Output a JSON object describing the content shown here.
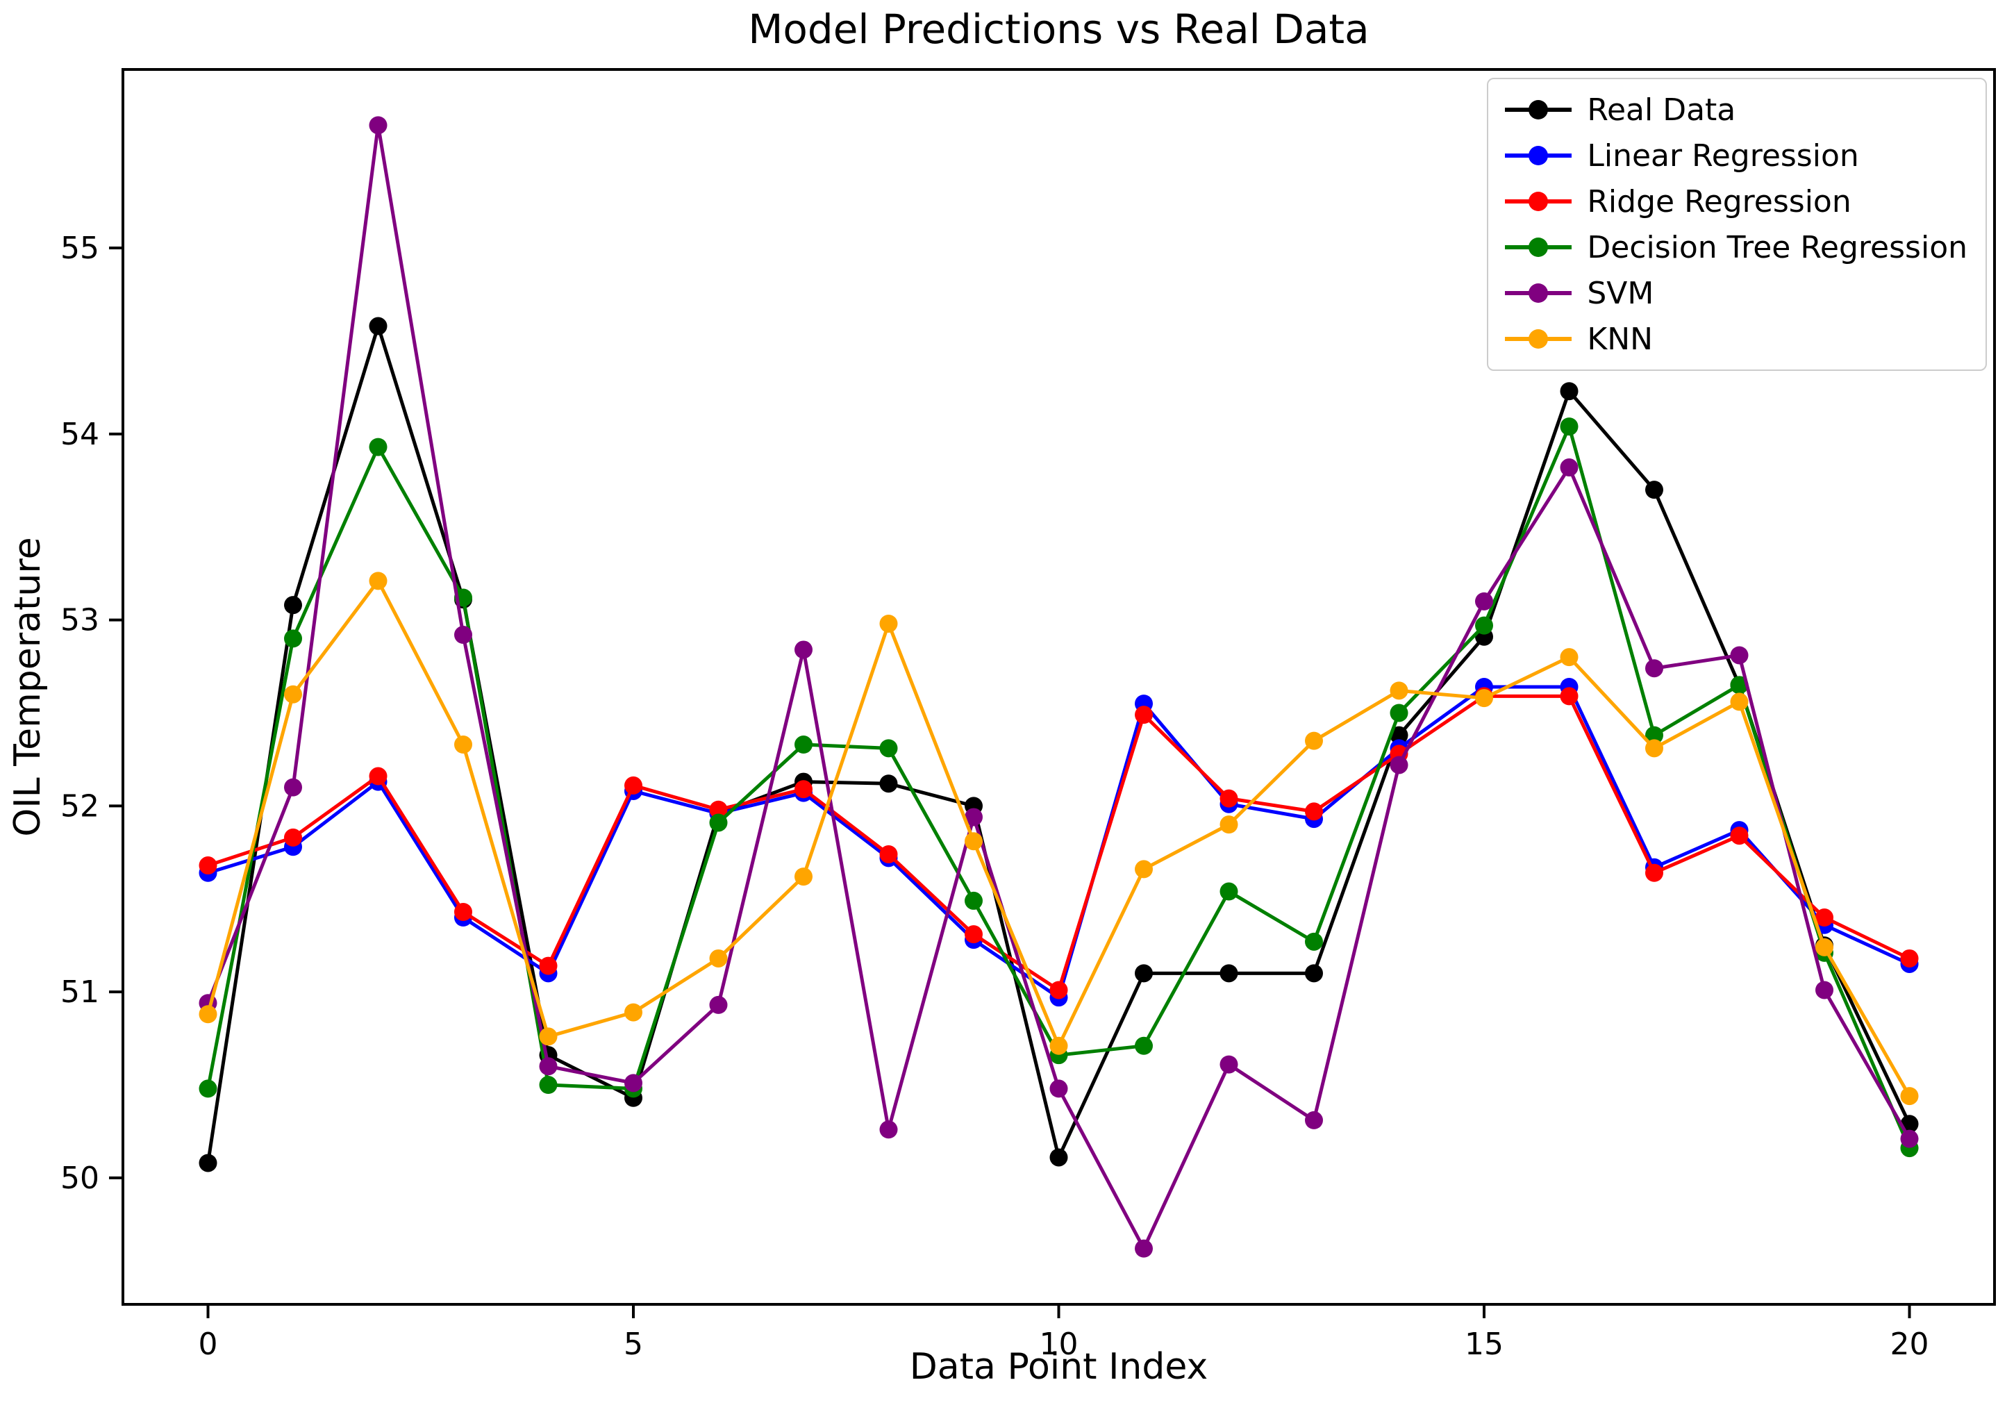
{
  "chart_data": {
    "type": "line",
    "title": "Model Predictions vs Real Data",
    "xlabel": "Data Point Index",
    "ylabel": "OIL Temperature",
    "x": [
      0,
      1,
      2,
      3,
      4,
      5,
      6,
      7,
      8,
      9,
      10,
      11,
      12,
      13,
      14,
      15,
      16,
      17,
      18,
      19,
      20
    ],
    "xlim": [
      -1,
      21
    ],
    "ylim": [
      49.32,
      55.96
    ],
    "x_ticks": [
      0,
      5,
      10,
      15,
      20
    ],
    "y_ticks": [
      50,
      51,
      52,
      53,
      54,
      55
    ],
    "grid": false,
    "legend_position": "upper right",
    "marker": "o",
    "series": [
      {
        "name": "Real Data",
        "color": "#000000",
        "values": [
          50.08,
          53.08,
          54.58,
          53.11,
          50.66,
          50.43,
          51.96,
          52.13,
          52.12,
          52.0,
          50.11,
          51.1,
          51.1,
          51.1,
          52.38,
          52.91,
          54.23,
          53.7,
          52.65,
          51.25,
          50.29
        ]
      },
      {
        "name": "Linear Regression",
        "color": "#0000ff",
        "values": [
          51.64,
          51.78,
          52.13,
          51.4,
          51.1,
          52.08,
          51.96,
          52.07,
          51.72,
          51.28,
          50.97,
          52.55,
          52.01,
          51.93,
          52.31,
          52.64,
          52.64,
          51.67,
          51.87,
          51.36,
          51.15
        ]
      },
      {
        "name": "Ridge Regression",
        "color": "#ff0000",
        "values": [
          51.68,
          51.83,
          52.16,
          51.43,
          51.14,
          52.11,
          51.98,
          52.09,
          51.74,
          51.31,
          51.01,
          52.49,
          52.04,
          51.97,
          52.28,
          52.59,
          52.59,
          51.64,
          51.84,
          51.4,
          51.18
        ]
      },
      {
        "name": "Decision Tree Regression",
        "color": "#008000",
        "values": [
          50.48,
          52.9,
          53.93,
          53.12,
          50.5,
          50.48,
          51.91,
          52.33,
          52.31,
          51.49,
          50.66,
          50.71,
          51.54,
          51.27,
          52.5,
          52.97,
          54.04,
          52.38,
          52.65,
          51.21,
          50.16
        ]
      },
      {
        "name": "SVM",
        "color": "#800080",
        "values": [
          50.94,
          52.1,
          55.66,
          52.92,
          50.6,
          50.51,
          50.93,
          52.84,
          50.26,
          51.94,
          50.48,
          49.62,
          50.61,
          50.31,
          52.22,
          53.1,
          53.82,
          52.74,
          52.81,
          51.01,
          50.21
        ]
      },
      {
        "name": "KNN",
        "color": "#ffa500",
        "values": [
          50.88,
          52.6,
          53.21,
          52.33,
          50.76,
          50.89,
          51.18,
          51.62,
          52.98,
          51.81,
          50.71,
          51.66,
          51.9,
          52.35,
          52.62,
          52.58,
          52.8,
          52.31,
          52.56,
          51.24,
          50.44
        ]
      }
    ]
  }
}
